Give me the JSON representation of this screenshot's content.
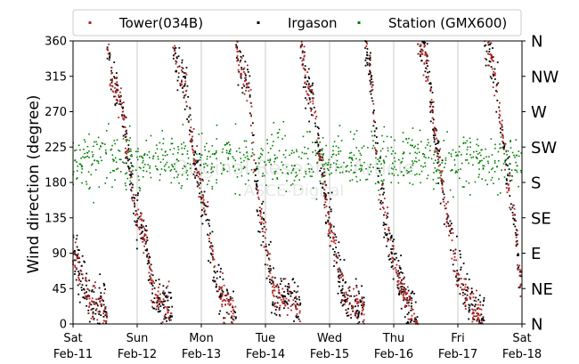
{
  "chart_data": {
    "type": "scatter",
    "ylabel": "Wind direction (degree)",
    "ylim": [
      0,
      360
    ],
    "yticks": [
      0,
      45,
      90,
      135,
      180,
      225,
      270,
      315,
      360
    ],
    "right_ticks": [
      {
        "value": 0,
        "label": "N"
      },
      {
        "value": 45,
        "label": "NE"
      },
      {
        "value": 90,
        "label": "E"
      },
      {
        "value": 135,
        "label": "SE"
      },
      {
        "value": 180,
        "label": "S"
      },
      {
        "value": 225,
        "label": "SW"
      },
      {
        "value": 270,
        "label": "W"
      },
      {
        "value": 315,
        "label": "NW"
      },
      {
        "value": 360,
        "label": "N"
      }
    ],
    "xlim": [
      "2018-02-11",
      "2018-02-18"
    ],
    "xticks": [
      {
        "date": "2018-02-11",
        "day": "Sat",
        "label": "Feb-11"
      },
      {
        "date": "2018-02-12",
        "day": "Sun",
        "label": "Feb-12"
      },
      {
        "date": "2018-02-13",
        "day": "Mon",
        "label": "Feb-13"
      },
      {
        "date": "2018-02-14",
        "day": "Tue",
        "label": "Feb-14"
      },
      {
        "date": "2018-02-15",
        "day": "Wed",
        "label": "Feb-15"
      },
      {
        "date": "2018-02-16",
        "day": "Thu",
        "label": "Feb-16"
      },
      {
        "date": "2018-02-17",
        "day": "Fri",
        "label": "Feb-17"
      },
      {
        "date": "2018-02-18",
        "day": "Sat",
        "label": "Feb-18"
      }
    ],
    "grid": "vertical at day boundaries",
    "legend": "top-center",
    "series": [
      {
        "name": "Tower(034B)",
        "color": "#b22222",
        "description_points": [
          [
            "2018-02-11 00:00",
            90
          ],
          [
            "2018-02-11 03:00",
            60
          ],
          [
            "2018-02-11 06:00",
            30
          ],
          [
            "2018-02-11 09:00",
            20
          ],
          [
            "2018-02-11 12:00",
            20
          ],
          [
            "2018-02-11 15:00",
            300
          ],
          [
            "2018-02-11 18:00",
            290
          ],
          [
            "2018-02-11 21:00",
            200
          ],
          [
            "2018-02-12 00:00",
            130
          ],
          [
            "2018-02-12 03:00",
            110
          ],
          [
            "2018-02-12 06:00",
            40
          ],
          [
            "2018-02-12 12:00",
            20
          ],
          [
            "2018-02-12 15:00",
            330
          ],
          [
            "2018-02-12 18:00",
            310
          ],
          [
            "2018-02-12 21:00",
            220
          ],
          [
            "2018-02-13 00:00",
            170
          ],
          [
            "2018-02-13 03:00",
            120
          ],
          [
            "2018-02-13 06:00",
            40
          ],
          [
            "2018-02-13 12:00",
            20
          ],
          [
            "2018-02-13 15:00",
            320
          ],
          [
            "2018-02-13 18:00",
            300
          ],
          [
            "2018-02-13 21:00",
            160
          ],
          [
            "2018-02-14 00:00",
            110
          ],
          [
            "2018-02-14 03:00",
            40
          ],
          [
            "2018-02-14 12:00",
            30
          ],
          [
            "2018-02-14 15:00",
            310
          ],
          [
            "2018-02-14 18:00",
            280
          ],
          [
            "2018-02-14 21:00",
            200
          ],
          [
            "2018-02-15 00:00",
            130
          ],
          [
            "2018-02-15 06:00",
            30
          ],
          [
            "2018-02-15 12:00",
            20
          ],
          [
            "2018-02-15 15:00",
            330
          ],
          [
            "2018-02-15 18:00",
            200
          ],
          [
            "2018-02-15 21:00",
            130
          ],
          [
            "2018-02-16 00:00",
            80
          ],
          [
            "2018-02-16 06:00",
            20
          ],
          [
            "2018-02-16 12:00",
            340
          ],
          [
            "2018-02-16 15:00",
            260
          ],
          [
            "2018-02-16 18:00",
            180
          ],
          [
            "2018-02-16 21:00",
            120
          ],
          [
            "2018-02-17 00:00",
            60
          ],
          [
            "2018-02-17 06:00",
            20
          ],
          [
            "2018-02-17 12:00",
            350
          ],
          [
            "2018-02-17 15:00",
            290
          ],
          [
            "2018-02-17 18:00",
            200
          ],
          [
            "2018-02-17 21:00",
            140
          ],
          [
            "2018-02-18 00:00",
            40
          ]
        ]
      },
      {
        "name": "Irgason",
        "color": "#000000",
        "description": "tracks the Tower(034B) series closely with slightly wider scatter"
      },
      {
        "name": "Station (GMX600)",
        "color": "#008000",
        "description": "scatter mostly between 135 and 270 degrees, centred near 205–215 degrees throughout the week"
      }
    ]
  },
  "watermark": {
    "line1": "Original Research Article",
    "line2": "ASCE-Digital"
  }
}
